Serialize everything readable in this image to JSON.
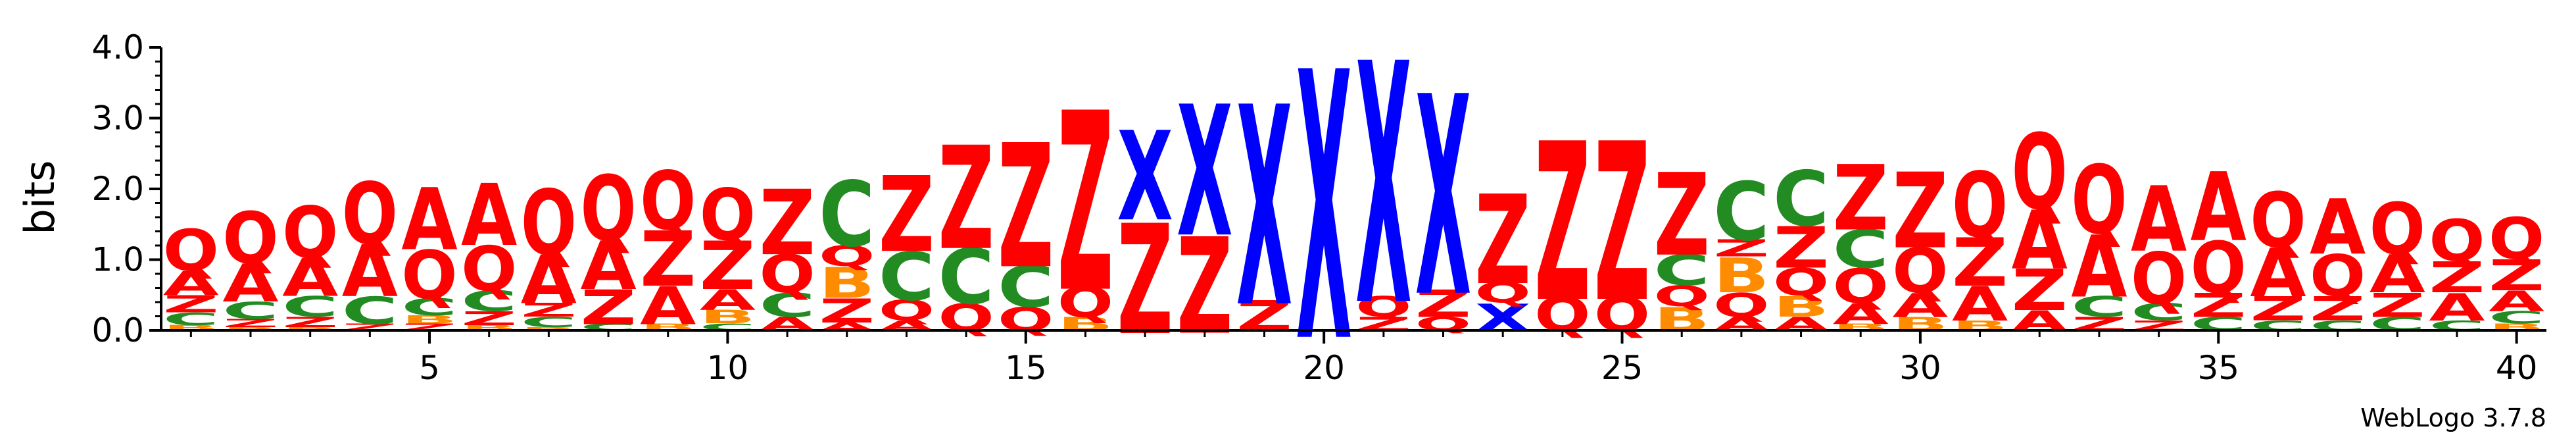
{
  "chart_data": {
    "type": "sequence_logo",
    "ylabel": "bits",
    "ylim": [
      0,
      4.0
    ],
    "y_ticks": [
      "0.0",
      "1.0",
      "2.0",
      "3.0",
      "4.0"
    ],
    "x_ticks": [
      "5",
      "10",
      "15",
      "20",
      "25",
      "30",
      "35",
      "40"
    ],
    "x_tick_values": [
      5,
      10,
      15,
      20,
      25,
      30,
      35,
      40
    ],
    "positions": 40,
    "credit": "WebLogo 3.7.8",
    "colors": {
      "Q": "#ff0000",
      "Z": "#ff0000",
      "A": "#ff0000",
      "X": "#0000ff",
      "C": "#228b22",
      "B": "#ff8c00"
    },
    "stacks": [
      [
        [
          "B",
          0.08
        ],
        [
          "C",
          0.18
        ],
        [
          "Z",
          0.25
        ],
        [
          "A",
          0.35
        ],
        [
          "Q",
          0.6
        ]
      ],
      [
        [
          "B",
          0.05
        ],
        [
          "Z",
          0.12
        ],
        [
          "C",
          0.25
        ],
        [
          "A",
          0.55
        ],
        [
          "Q",
          0.75
        ]
      ],
      [
        [
          "B",
          0.05
        ],
        [
          "Z",
          0.15
        ],
        [
          "C",
          0.3
        ],
        [
          "A",
          0.55
        ],
        [
          "Q",
          0.75
        ]
      ],
      [
        [
          "Z",
          0.1
        ],
        [
          "C",
          0.4
        ],
        [
          "A",
          0.75
        ],
        [
          "Q",
          0.9
        ]
      ],
      [
        [
          "Z",
          0.1
        ],
        [
          "B",
          0.12
        ],
        [
          "C",
          0.25
        ],
        [
          "Q",
          0.7
        ],
        [
          "A",
          0.9
        ]
      ],
      [
        [
          "B",
          0.08
        ],
        [
          "Z",
          0.2
        ],
        [
          "C",
          0.3
        ],
        [
          "Q",
          0.65
        ],
        [
          "A",
          0.9
        ]
      ],
      [
        [
          "B",
          0.05
        ],
        [
          "C",
          0.15
        ],
        [
          "Z",
          0.2
        ],
        [
          "A",
          0.7
        ],
        [
          "Q",
          0.95
        ]
      ],
      [
        [
          "C",
          0.1
        ],
        [
          "Z",
          0.5
        ],
        [
          "A",
          0.7
        ],
        [
          "Q",
          0.95
        ]
      ],
      [
        [
          "B",
          0.1
        ],
        [
          "A",
          0.55
        ],
        [
          "Z",
          0.8
        ],
        [
          "Q",
          0.85
        ]
      ],
      [
        [
          "C",
          0.1
        ],
        [
          "B",
          0.2
        ],
        [
          "A",
          0.3
        ],
        [
          "Z",
          0.7
        ],
        [
          "Q",
          0.75
        ]
      ],
      [
        [
          "A",
          0.2
        ],
        [
          "C",
          0.35
        ],
        [
          "Q",
          0.55
        ],
        [
          "Z",
          0.95
        ]
      ],
      [
        [
          "A",
          0.12
        ],
        [
          "Z",
          0.35
        ],
        [
          "B",
          0.45
        ],
        [
          "Q",
          0.3
        ],
        [
          "C",
          0.95
        ]
      ],
      [
        [
          "A",
          0.15
        ],
        [
          "Q",
          0.3
        ],
        [
          "C",
          0.7
        ],
        [
          "Z",
          1.1
        ]
      ],
      [
        [
          "Q",
          0.4
        ],
        [
          "C",
          0.8
        ],
        [
          "Z",
          1.5
        ]
      ],
      [
        [
          "Q",
          0.35
        ],
        [
          "C",
          0.6
        ],
        [
          "Z",
          1.8
        ]
      ],
      [
        [
          "B",
          0.2
        ],
        [
          "Q",
          0.45
        ],
        [
          "Z",
          2.6
        ]
      ],
      [
        [
          "Z",
          1.6
        ],
        [
          "X",
          1.3
        ]
      ],
      [
        [
          "Z",
          1.4
        ],
        [
          "X",
          1.9
        ]
      ],
      [
        [
          "Z",
          0.45
        ],
        [
          "X",
          2.9
        ]
      ],
      [
        [
          "X",
          3.9
        ]
      ],
      [
        [
          "Z",
          0.2
        ],
        [
          "Q",
          0.3
        ],
        [
          "X",
          3.5
        ]
      ],
      [
        [
          "Q",
          0.2
        ],
        [
          "Z",
          0.4
        ],
        [
          "X",
          2.9
        ]
      ],
      [
        [
          "X",
          0.4
        ],
        [
          "Q",
          0.3
        ],
        [
          "Z",
          1.3
        ]
      ],
      [
        [
          "Q",
          0.5
        ],
        [
          "Z",
          2.3
        ]
      ],
      [
        [
          "Q",
          0.5
        ],
        [
          "Z",
          2.3
        ]
      ],
      [
        [
          "B",
          0.35
        ],
        [
          "Q",
          0.3
        ],
        [
          "C",
          0.45
        ],
        [
          "Z",
          1.2
        ]
      ],
      [
        [
          "A",
          0.2
        ],
        [
          "Q",
          0.35
        ],
        [
          "B",
          0.5
        ],
        [
          "Z",
          0.25
        ],
        [
          "C",
          0.85
        ]
      ],
      [
        [
          "A",
          0.2
        ],
        [
          "B",
          0.3
        ],
        [
          "Q",
          0.4
        ],
        [
          "Z",
          0.6
        ],
        [
          "C",
          0.8
        ]
      ],
      [
        [
          "B",
          0.1
        ],
        [
          "A",
          0.3
        ],
        [
          "Q",
          0.5
        ],
        [
          "C",
          0.55
        ],
        [
          "Z",
          0.95
        ]
      ],
      [
        [
          "B",
          0.2
        ],
        [
          "A",
          0.35
        ],
        [
          "Q",
          0.65
        ],
        [
          "Z",
          1.1
        ]
      ],
      [
        [
          "B",
          0.15
        ],
        [
          "A",
          0.5
        ],
        [
          "Z",
          0.7
        ],
        [
          "Q",
          0.95
        ]
      ],
      [
        [
          "A",
          0.3
        ],
        [
          "Z",
          0.6
        ],
        [
          "A",
          0.85
        ],
        [
          "Q",
          1.1
        ]
      ],
      [
        [
          "Z",
          0.2
        ],
        [
          "C",
          0.3
        ],
        [
          "A",
          0.9
        ],
        [
          "Q",
          1.0
        ]
      ],
      [
        [
          "Z",
          0.15
        ],
        [
          "C",
          0.25
        ],
        [
          "Q",
          0.75
        ],
        [
          "A",
          0.95
        ]
      ],
      [
        [
          "C",
          0.2
        ],
        [
          "Z",
          0.35
        ],
        [
          "Q",
          0.75
        ],
        [
          "A",
          1.0
        ]
      ],
      [
        [
          "C",
          0.15
        ],
        [
          "Z",
          0.35
        ],
        [
          "A",
          0.7
        ],
        [
          "Q",
          0.8
        ]
      ],
      [
        [
          "C",
          0.15
        ],
        [
          "Z",
          0.35
        ],
        [
          "Q",
          0.6
        ],
        [
          "A",
          0.8
        ]
      ],
      [
        [
          "C",
          0.2
        ],
        [
          "Z",
          0.35
        ],
        [
          "A",
          0.55
        ],
        [
          "Q",
          0.75
        ]
      ],
      [
        [
          "C",
          0.15
        ],
        [
          "A",
          0.4
        ],
        [
          "Z",
          0.45
        ],
        [
          "Q",
          0.6
        ]
      ],
      [
        [
          "B",
          0.1
        ],
        [
          "C",
          0.18
        ],
        [
          "A",
          0.3
        ],
        [
          "Z",
          0.45
        ],
        [
          "Q",
          0.6
        ]
      ]
    ]
  }
}
